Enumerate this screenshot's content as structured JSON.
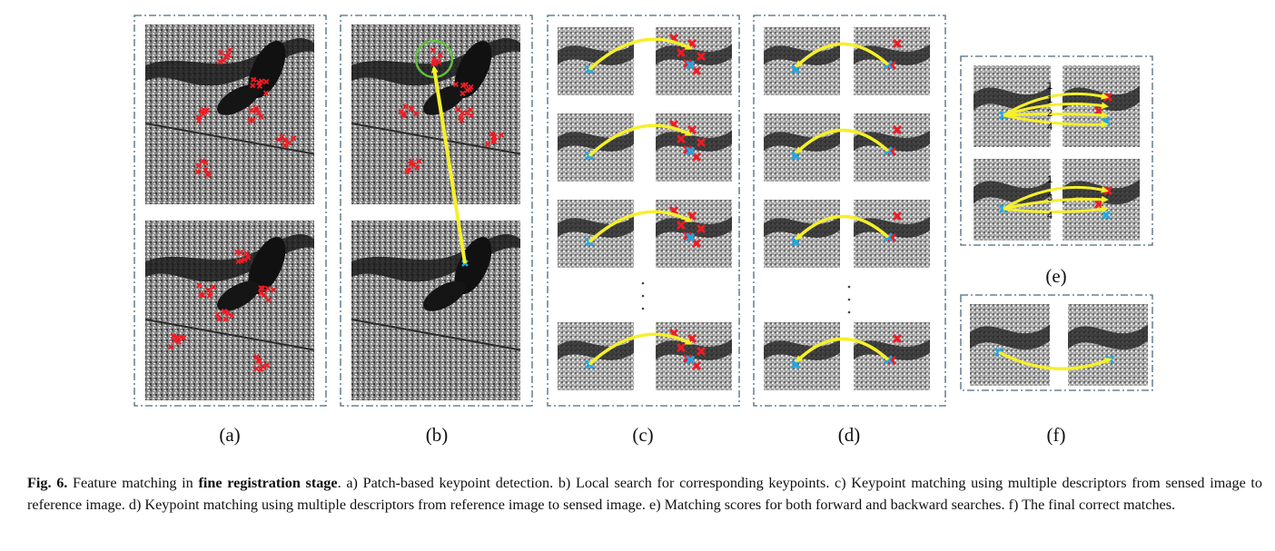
{
  "panel_labels": {
    "a": "(a)",
    "b": "(b)",
    "c": "(c)",
    "d": "(d)",
    "e": "(e)",
    "f": "(f)"
  },
  "score_labels_e_top": [
    "1",
    "1",
    "2",
    "4"
  ],
  "score_labels_e_bottom": [
    "1",
    "3",
    "4"
  ],
  "caption": {
    "fig_label": "Fig. 6.",
    "lead": "Feature matching in",
    "bold_phrase": "fine registration stage",
    "text": ". a) Patch-based keypoint detection. b) Local search for corresponding keypoints. c) Keypoint matching using multiple descriptors from sensed image to reference image. d) Keypoint matching using multiple descriptors from reference image to sensed image. e) Matching scores for both forward and backward searches. f) The final correct matches."
  },
  "colors": {
    "frame": "#4a6a80",
    "arrow": "#f5f02a",
    "keypoint_red": "#ee1c24",
    "keypoint_blue": "#1fa6e6",
    "circle": "#5fbf3f"
  }
}
